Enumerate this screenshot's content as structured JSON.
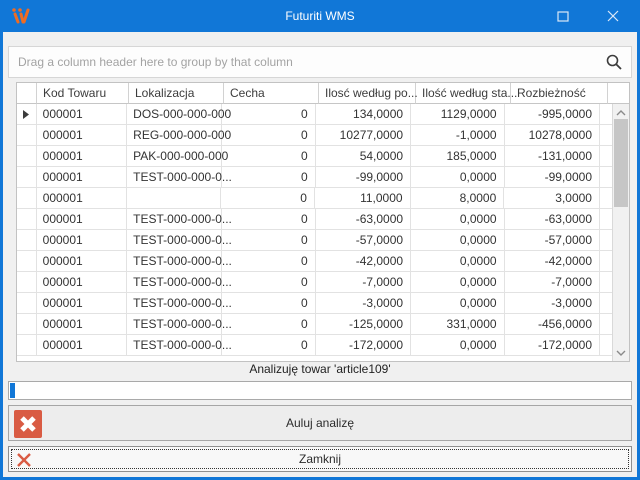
{
  "window": {
    "title": "Futuriti WMS"
  },
  "group_panel": {
    "text": "Drag a column header here to group by that column"
  },
  "grid": {
    "columns": [
      {
        "label": "Kod Towaru",
        "align": "left"
      },
      {
        "label": "Lokalizacja",
        "align": "left"
      },
      {
        "label": "Cecha",
        "align": "left"
      },
      {
        "label": "Ilosć według po...",
        "align": "left"
      },
      {
        "label": "Ilość według sta...",
        "align": "left"
      },
      {
        "label": "Rozbieżność",
        "align": "left"
      }
    ],
    "rows": [
      {
        "selected": true,
        "kod": "000001",
        "lokalizacja": "DOS-000-000-000",
        "cecha": "0",
        "ilosc_po": "134,0000",
        "ilosc_sta": "1129,0000",
        "rozbieznosc": "-995,0000"
      },
      {
        "selected": false,
        "kod": "000001",
        "lokalizacja": "REG-000-000-000",
        "cecha": "0",
        "ilosc_po": "10277,0000",
        "ilosc_sta": "-1,0000",
        "rozbieznosc": "10278,0000"
      },
      {
        "selected": false,
        "kod": "000001",
        "lokalizacja": "PAK-000-000-000",
        "cecha": "0",
        "ilosc_po": "54,0000",
        "ilosc_sta": "185,0000",
        "rozbieznosc": "-131,0000"
      },
      {
        "selected": false,
        "kod": "000001",
        "lokalizacja": "TEST-000-000-0...",
        "cecha": "0",
        "ilosc_po": "-99,0000",
        "ilosc_sta": "0,0000",
        "rozbieznosc": "-99,0000"
      },
      {
        "selected": false,
        "kod": "000001",
        "lokalizacja": "",
        "cecha": "0",
        "ilosc_po": "11,0000",
        "ilosc_sta": "8,0000",
        "rozbieznosc": "3,0000"
      },
      {
        "selected": false,
        "kod": "000001",
        "lokalizacja": "TEST-000-000-0...",
        "cecha": "0",
        "ilosc_po": "-63,0000",
        "ilosc_sta": "0,0000",
        "rozbieznosc": "-63,0000"
      },
      {
        "selected": false,
        "kod": "000001",
        "lokalizacja": "TEST-000-000-0...",
        "cecha": "0",
        "ilosc_po": "-57,0000",
        "ilosc_sta": "0,0000",
        "rozbieznosc": "-57,0000"
      },
      {
        "selected": false,
        "kod": "000001",
        "lokalizacja": "TEST-000-000-0...",
        "cecha": "0",
        "ilosc_po": "-42,0000",
        "ilosc_sta": "0,0000",
        "rozbieznosc": "-42,0000"
      },
      {
        "selected": false,
        "kod": "000001",
        "lokalizacja": "TEST-000-000-0...",
        "cecha": "0",
        "ilosc_po": "-7,0000",
        "ilosc_sta": "0,0000",
        "rozbieznosc": "-7,0000"
      },
      {
        "selected": false,
        "kod": "000001",
        "lokalizacja": "TEST-000-000-0...",
        "cecha": "0",
        "ilosc_po": "-3,0000",
        "ilosc_sta": "0,0000",
        "rozbieznosc": "-3,0000"
      },
      {
        "selected": false,
        "kod": "000001",
        "lokalizacja": "TEST-000-000-0...",
        "cecha": "0",
        "ilosc_po": "-125,0000",
        "ilosc_sta": "331,0000",
        "rozbieznosc": "-456,0000"
      },
      {
        "selected": false,
        "kod": "000001",
        "lokalizacja": "TEST-000-000-0...",
        "cecha": "0",
        "ilosc_po": "-172,0000",
        "ilosc_sta": "0,0000",
        "rozbieznosc": "-172,0000"
      }
    ]
  },
  "status": {
    "text": "Analizuję towar 'article109'"
  },
  "progress": {
    "value_percent": 1
  },
  "buttons": {
    "cancel_label": "Auluj analizę",
    "close_label": "Zamknij"
  },
  "colors": {
    "titlebar-blue": "#1177d7",
    "accent-orange": "#ee6c23",
    "danger-red": "#d95b43"
  }
}
